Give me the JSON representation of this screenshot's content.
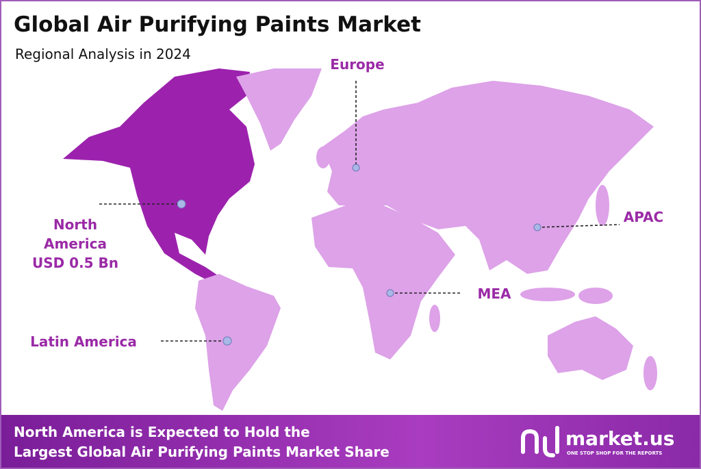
{
  "header": {
    "title": "Global Air Purifying Paints Market",
    "subtitle": "Regional Analysis in 2024"
  },
  "regions": [
    {
      "label": "North America",
      "value": "USD 0.5 Bn"
    },
    {
      "label": "Europe"
    },
    {
      "label": "APAC"
    },
    {
      "label": "MEA"
    },
    {
      "label": "Latin America"
    }
  ],
  "footer": {
    "lines": [
      "North America is Expected to Hold the",
      "Largest Global Air Purifying Paints Market Share"
    ],
    "brand": "market.us",
    "tagline": "ONE STOP SHOP FOR THE REPORTS"
  }
}
